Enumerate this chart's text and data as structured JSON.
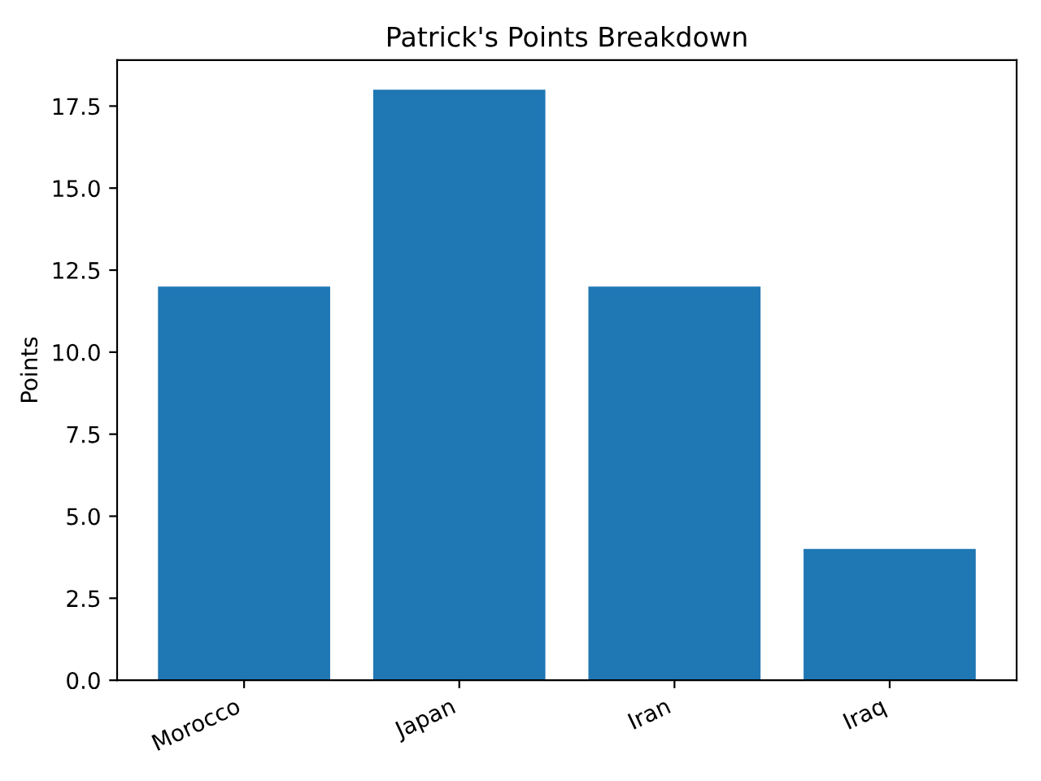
{
  "chart_data": {
    "type": "bar",
    "title": "Patrick's Points Breakdown",
    "ylabel": "Points",
    "categories": [
      "Morocco",
      "Japan",
      "Iran",
      "Iraq"
    ],
    "values": [
      12,
      18,
      12,
      4
    ],
    "color": "#1f77b4",
    "ylim": [
      0,
      18.9
    ],
    "yticks": [
      {
        "value": 0,
        "label": "0.0"
      },
      2.5,
      {
        "value": 5,
        "label": "5.0"
      },
      7.5,
      {
        "value": 10,
        "label": "10.0"
      },
      12.5,
      {
        "value": 15,
        "label": "15.0"
      },
      17.5
    ],
    "grid": false,
    "legend": false
  }
}
